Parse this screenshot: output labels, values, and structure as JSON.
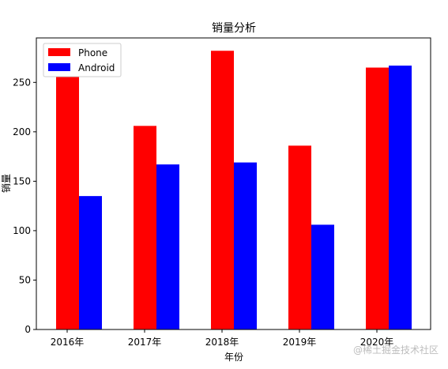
{
  "chart_data": {
    "type": "bar",
    "title": "销量分析",
    "xlabel": "年份",
    "ylabel": "销量",
    "categories": [
      "2016年",
      "2017年",
      "2018年",
      "2019年",
      "2020年"
    ],
    "series": [
      {
        "name": "Phone",
        "values": [
          272,
          206,
          282,
          186,
          265
        ],
        "color": "#ff0000"
      },
      {
        "name": "Android",
        "values": [
          135,
          167,
          169,
          106,
          267
        ],
        "color": "#0000ff"
      }
    ],
    "ylim": [
      0,
      295
    ],
    "yticks": [
      0,
      50,
      100,
      150,
      200,
      250
    ],
    "grid": false,
    "legend_position": "top-left"
  },
  "watermark": "@稀土掘金技术社区"
}
